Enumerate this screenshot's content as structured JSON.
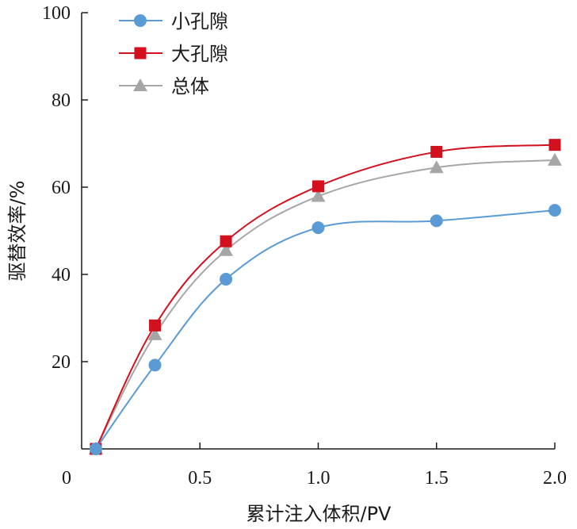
{
  "chart_data": {
    "type": "line",
    "xlabel": "累计注入体积/PV",
    "ylabel": "驱替效率/%",
    "xlim": [
      0,
      2.0
    ],
    "ylim": [
      0,
      100
    ],
    "xticks": [
      "0",
      "0.5",
      "1.0",
      "1.5",
      "2.0"
    ],
    "yticks": [
      "20",
      "40",
      "60",
      "80",
      "100"
    ],
    "xtick_values": [
      0,
      0.5,
      1.0,
      1.5,
      2.0
    ],
    "ytick_values": [
      20,
      40,
      60,
      80,
      100
    ],
    "grid": false,
    "legend_position": "top-left",
    "smooth": true,
    "series": [
      {
        "name": "小孔隙",
        "color": "#5b9bd5",
        "marker": "circle",
        "x": [
          0.06,
          0.31,
          0.61,
          1.0,
          1.5,
          2.0
        ],
        "y": [
          0,
          19.2,
          38.9,
          50.7,
          52.3,
          54.7
        ]
      },
      {
        "name": "大孔隙",
        "color": "#d2101e",
        "marker": "square",
        "x": [
          0.06,
          0.31,
          0.61,
          1.0,
          1.5,
          2.0
        ],
        "y": [
          0,
          28.3,
          47.6,
          60.2,
          68.1,
          69.7
        ]
      },
      {
        "name": "总体",
        "color": "#a6a6a6",
        "marker": "triangle",
        "x": [
          0.06,
          0.31,
          0.61,
          1.0,
          1.5,
          2.0
        ],
        "y": [
          0,
          26.2,
          45.5,
          57.9,
          64.5,
          66.2
        ]
      }
    ]
  }
}
